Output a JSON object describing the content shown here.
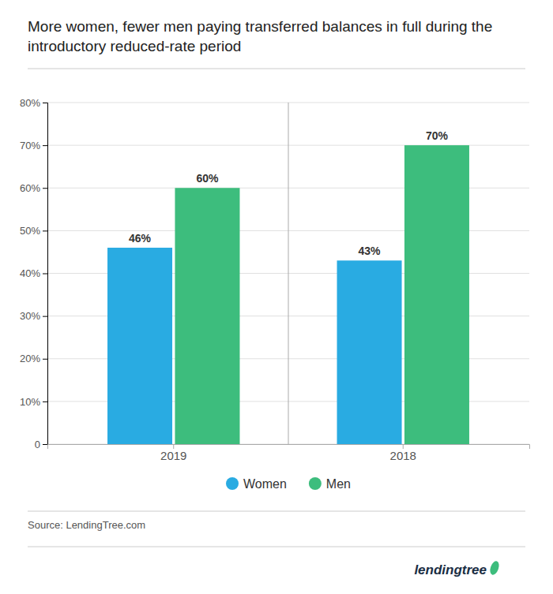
{
  "chart_data": {
    "type": "bar",
    "title": "More women, fewer men paying transferred balances in full during the introductory reduced-rate period",
    "categories": [
      "2019",
      "2018"
    ],
    "series": [
      {
        "name": "Women",
        "color": "#29ABE2",
        "values": [
          46,
          43
        ],
        "value_labels": [
          "46%",
          "43%"
        ]
      },
      {
        "name": "Men",
        "color": "#3DBD7D",
        "values": [
          60,
          70
        ],
        "value_labels": [
          "60%",
          "70%"
        ]
      }
    ],
    "ylim": [
      0,
      80
    ],
    "yticks": [
      0,
      {
        "value": 10,
        "label": "10%"
      },
      {
        "value": 20,
        "label": "20%"
      },
      {
        "value": 30,
        "label": "30%"
      },
      {
        "value": 40,
        "label": "40%"
      },
      {
        "value": 50,
        "label": "50%"
      },
      {
        "value": 60,
        "label": "60%"
      },
      {
        "value": 70,
        "label": "70%"
      },
      {
        "value": 80,
        "label": "80%"
      }
    ],
    "grid": true,
    "data_labels": true,
    "legend": "bottom",
    "annotations": [
      "Source: LendingTree.com",
      "lendingtree"
    ]
  }
}
